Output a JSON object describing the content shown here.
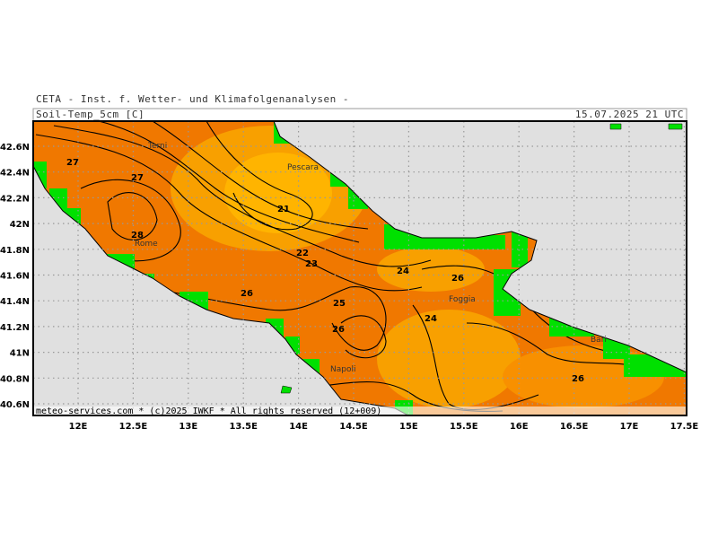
{
  "header": {
    "institute": "CETA - Inst. f. Wetter- und Klimafolgenanalysen -",
    "parameter": "Soil-Temp_5cm [C]",
    "valid_time": "15.07.2025 21 UTC"
  },
  "footer": "meteo-services.com * (c)2025 IWKF * All rights reserved (12+009)",
  "map": {
    "lat_labels": [
      "42.6N",
      "42.4N",
      "42.2N",
      "42N",
      "41.8N",
      "41.6N",
      "41.4N",
      "41.2N",
      "41N",
      "40.8N",
      "40.6N"
    ],
    "lon_labels": [
      "12E",
      "12.5E",
      "13E",
      "13.5E",
      "14E",
      "14.5E",
      "15E",
      "15.5E",
      "16E",
      "16.5E",
      "17E",
      "17.5E"
    ],
    "cities": [
      "Terni",
      "Pescara",
      "Rome",
      "Foggia",
      "Napoli",
      "Bari"
    ],
    "contour_labels": [
      "27",
      "27",
      "28",
      "21",
      "22",
      "23",
      "24",
      "26",
      "26",
      "25",
      "26",
      "24",
      "26"
    ]
  }
}
